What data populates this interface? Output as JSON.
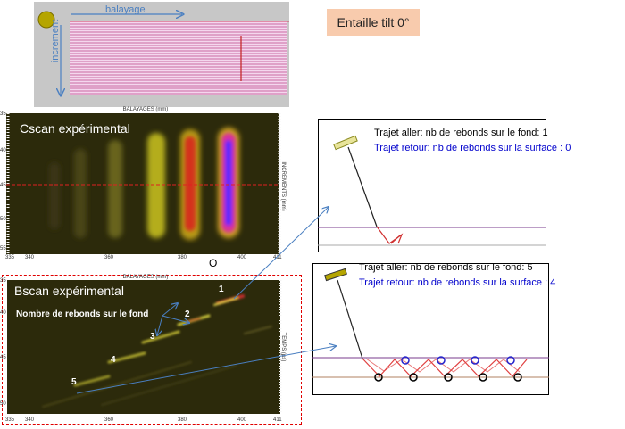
{
  "title": "Entaille tilt 0°",
  "schematic": {
    "scan_label": "balayage",
    "increment_label": "increment"
  },
  "cscan": {
    "label": "Cscan expérimental",
    "x_axis_title": "BALAYAGES (mm)",
    "y_axis_title": "INCREMENTS (mm)",
    "x_ticks": [
      "335",
      "340",
      "360",
      "380",
      "400",
      "411"
    ],
    "y_ticks": [
      "35",
      "40",
      "45",
      "50",
      "55"
    ],
    "marker": "O"
  },
  "bscan": {
    "label": "Bscan expérimental",
    "x_axis_title": "BALAYAGES (mm)",
    "y_axis_title": "TEMPS (µs)",
    "x_ticks": [
      "335",
      "340",
      "360",
      "380",
      "400",
      "411"
    ],
    "y_ticks": [
      "35",
      "40",
      "45",
      "50"
    ],
    "annotation": "Nombre de rebonds sur le fond",
    "echo_numbers": [
      "1",
      "2",
      "3",
      "4",
      "5"
    ]
  },
  "path1": {
    "aller": "Trajet aller: nb de rebonds sur le fond: 1",
    "retour": "Trajet retour: nb de rebonds sur la surface : 0"
  },
  "path5": {
    "aller": "Trajet aller: nb de rebonds sur le fond: 5",
    "retour": "Trajet retour: nb de rebonds sur la surface : 4"
  },
  "colors": {
    "title_bg": "#f8cbad",
    "return_text": "#0000cc",
    "arrow": "#4a7fc1",
    "scan_dark": "#2c2a0b"
  }
}
